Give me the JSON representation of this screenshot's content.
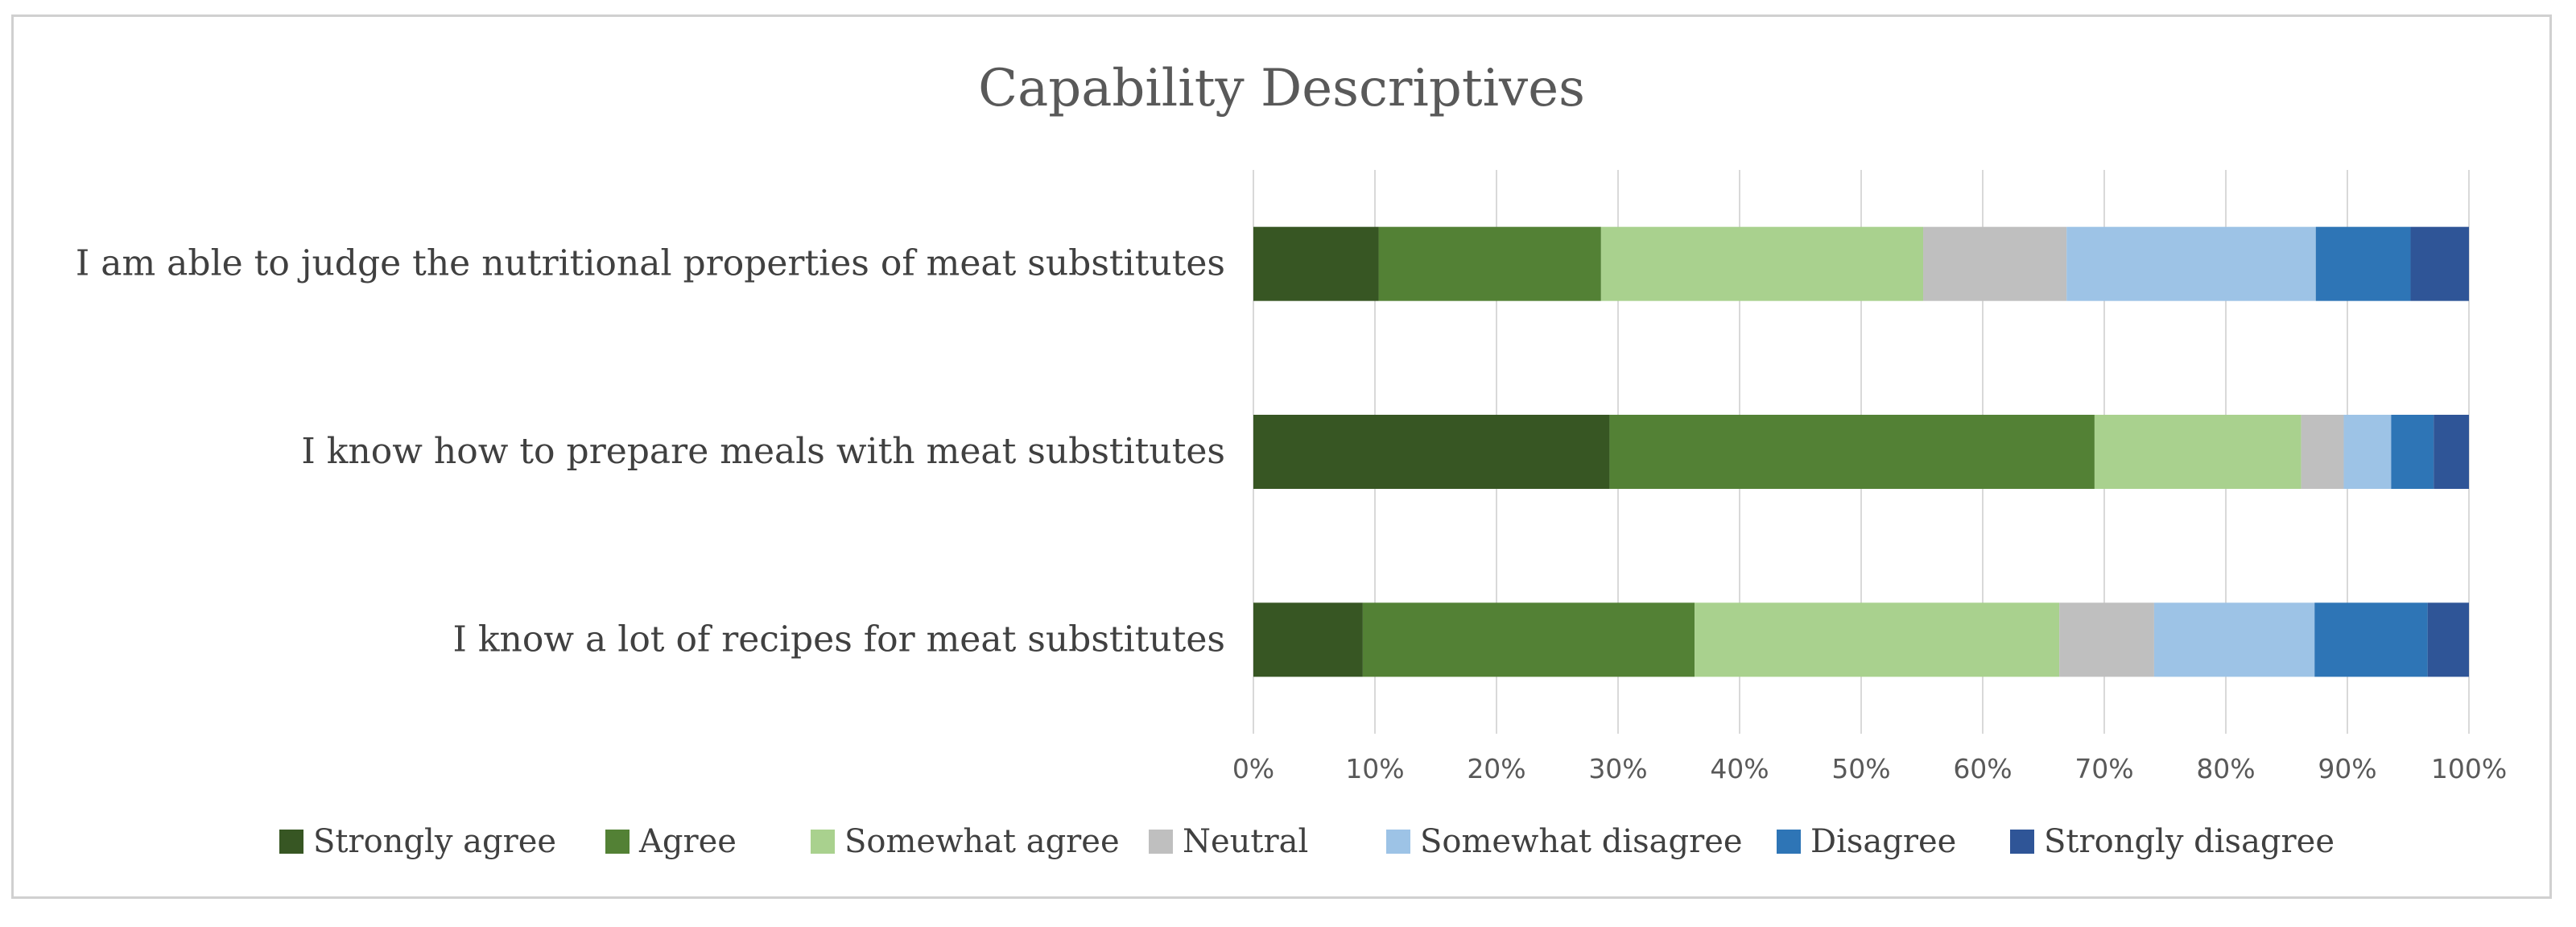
{
  "chart_data": {
    "type": "bar",
    "orientation": "horizontal",
    "stacked": "percent",
    "title": "Capability Descriptives",
    "categories": [
      "I am able to judge the nutritional properties of meat substitutes",
      "I know how to prepare meals with meat substitutes",
      "I know a lot of recipes for meat substitutes"
    ],
    "series": [
      {
        "name": "Strongly agree",
        "color": "#375623",
        "values": [
          10.3,
          29.3,
          9.0
        ]
      },
      {
        "name": "Agree",
        "color": "#538135",
        "values": [
          18.3,
          39.9,
          27.3
        ]
      },
      {
        "name": "Somewhat agree",
        "color": "#a9d18e",
        "values": [
          26.5,
          17.0,
          30.0
        ]
      },
      {
        "name": "Neutral",
        "color": "#bfbfbf",
        "values": [
          11.8,
          3.5,
          7.8
        ]
      },
      {
        "name": "Somewhat disagree",
        "color": "#9dc3e6",
        "values": [
          20.5,
          3.9,
          13.2
        ]
      },
      {
        "name": "Disagree",
        "color": "#2e75b6",
        "values": [
          7.8,
          3.5,
          9.3
        ]
      },
      {
        "name": "Strongly disagree",
        "color": "#2f5597",
        "values": [
          4.8,
          2.9,
          3.4
        ]
      }
    ],
    "xlim": [
      0,
      100
    ],
    "xticks": [
      "0%",
      "10%",
      "20%",
      "30%",
      "40%",
      "50%",
      "60%",
      "70%",
      "80%",
      "90%",
      "100%"
    ],
    "grid": "vertical",
    "legend": "bottom"
  }
}
